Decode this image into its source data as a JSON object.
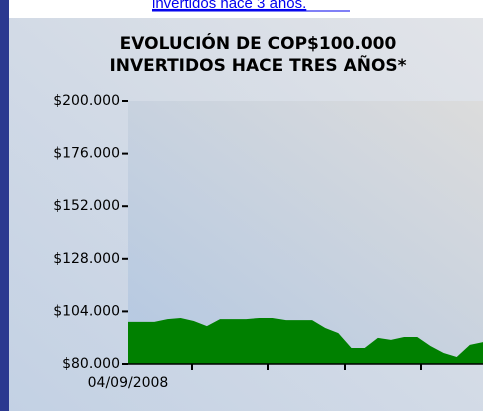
{
  "link": "invertidos hace 3 años.",
  "chart_data": {
    "type": "area",
    "title": [
      "EVOLUCIÓN DE COP$100.000",
      "INVERTIDOS HACE TRES AÑOS*"
    ],
    "categories": [
      "04/09/2008",
      null,
      null,
      null,
      null,
      null,
      null,
      null,
      null,
      null,
      null,
      null,
      null,
      null,
      null,
      null,
      null,
      null,
      null,
      null,
      null,
      null,
      null,
      null,
      null,
      null,
      null,
      null
    ],
    "values": [
      99200,
      99200,
      99200,
      100500,
      101000,
      99600,
      97300,
      100500,
      100500,
      100500,
      101000,
      101000,
      100000,
      100000,
      100000,
      96400,
      94100,
      87300,
      87300,
      91900,
      91000,
      92300,
      92300,
      88200,
      85000,
      83200,
      88700,
      90000
    ],
    "color": "#008000",
    "ylim": [
      80000,
      200000
    ],
    "yticks": [
      {
        "value": 80000,
        "label": "$80.000"
      },
      {
        "value": 104000,
        "label": "$104.000"
      },
      {
        "value": 128000,
        "label": "$128.000"
      },
      {
        "value": 152000,
        "label": "$152.000"
      },
      {
        "value": 176000,
        "label": "$176.000"
      },
      {
        "value": 200000,
        "label": "$200.000"
      }
    ]
  }
}
